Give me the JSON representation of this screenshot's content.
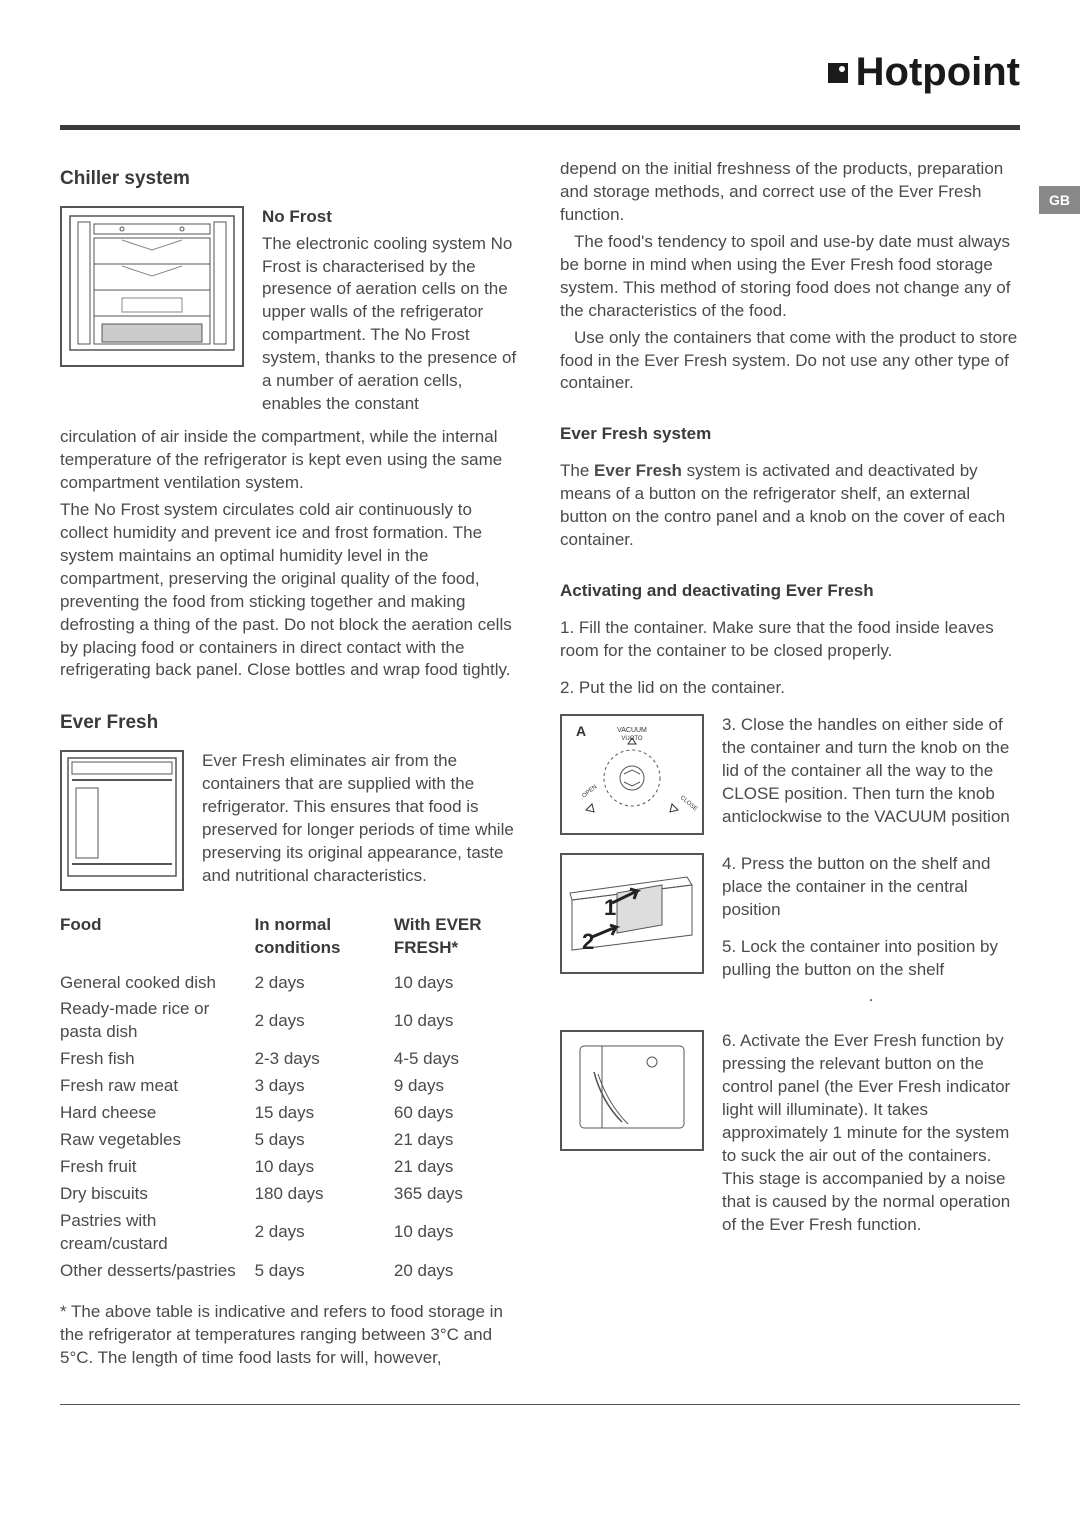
{
  "brand": "Hotpoint",
  "region": "GB",
  "colors": {
    "text": "#4a4a4a",
    "heading": "#3a3a3a",
    "rule": "#3a3a3a",
    "bg": "#ffffff",
    "tab_bg": "#888888",
    "tab_fg": "#ffffff"
  },
  "left": {
    "h1": "Chiller system",
    "nofrost_h": "No Frost",
    "nofrost_p1": "The electronic cooling system No Frost is characterised by the presence of aeration cells on the upper walls of the refrigerator compartment. The No Frost system, thanks to the presence of a number of aeration cells, enables the constant",
    "nofrost_p2": "circulation of air inside the compartment, while the internal temperature of the refrigerator is kept even using the same compartment ventilation system.",
    "nofrost_p3": "The No Frost system circulates cold air continuously to collect humidity and prevent ice and frost formation. The system maintains an optimal humidity level in the compartment, preserving the original quality of the food, preventing the food from sticking together and making defrosting a thing of the past. Do not block the aeration cells by placing food or containers in direct contact with the refrigerating back panel. Close bottles and wrap food tightly.",
    "h2": "Ever Fresh",
    "ef_intro": "Ever Fresh eliminates air from the containers that are supplied with the refrigerator. This ensures that food is preserved for longer periods of time while preserving its original appearance, taste and nutritional characteristics.",
    "table": {
      "headers": [
        "Food",
        "In normal conditions",
        "With EVER FRESH*"
      ],
      "rows": [
        [
          "General cooked dish",
          "2 days",
          "10 days"
        ],
        [
          "Ready-made rice or pasta dish",
          "2 days",
          "10 days"
        ],
        [
          "Fresh fish",
          "2-3 days",
          "4-5 days"
        ],
        [
          "Fresh raw meat",
          "3 days",
          "9 days"
        ],
        [
          "Hard cheese",
          "15 days",
          "60 days"
        ],
        [
          "Raw vegetables",
          "5 days",
          "21 days"
        ],
        [
          "Fresh fruit",
          "10 days",
          "21 days"
        ],
        [
          "Dry biscuits",
          "180 days",
          "365 days"
        ],
        [
          "Pastries with cream/custard",
          "2 days",
          "10 days"
        ],
        [
          "Other desserts/pastries",
          "5 days",
          "20 days"
        ]
      ]
    },
    "footnote": "* The above table is indicative and refers to food storage in the refrigerator at temperatures ranging between 3°C and 5°C.  The length of time food lasts for will, however,"
  },
  "right": {
    "p1": "depend on the initial freshness of the products, preparation and storage methods, and correct use of the Ever Fresh function.",
    "p2": "The food's tendency to spoil and use-by date must always be borne in mind when using the Ever Fresh food storage system. This method of storing food does not change any of the characteristics of the food.",
    "p3": "Use only the containers that come with the product to store food in the Ever Fresh system. Do not use any other type of container.",
    "efs_h": "Ever Fresh system",
    "efs_p": "The Ever Fresh system is activated and deactivated by means of a button on the refrigerator shelf, an external button on the contro panel and a knob on the cover of each container.",
    "efs_bold": "Ever Fresh",
    "act_h": "Activating and deactivating Ever Fresh",
    "s1": "1. Fill the container. Make sure that the food inside leaves room for the container to be closed properly.",
    "s2": "2. Put the lid on the container.",
    "s3": "3. Close the handles on either side of the container and turn the knob on the lid of the container all the way to the CLOSE position. Then turn the knob anticlockwise to the VACUUM position",
    "s4": "4. Press the button on the shelf and place the container in the central position",
    "s5": "5. Lock the container into position by pulling the button on the shelf",
    "s6": "6. Activate the Ever Fresh function by pressing the relevant button on the control panel (the Ever Fresh indicator light will illuminate). It takes approximately 1 minute for the system to suck the air out of the containers. This stage is accompanied by a noise that is caused by the normal operation of the Ever Fresh function.",
    "diag_a": "A",
    "diag_vac": "VACUUM",
    "diag_vuoto": "VUOTO"
  }
}
